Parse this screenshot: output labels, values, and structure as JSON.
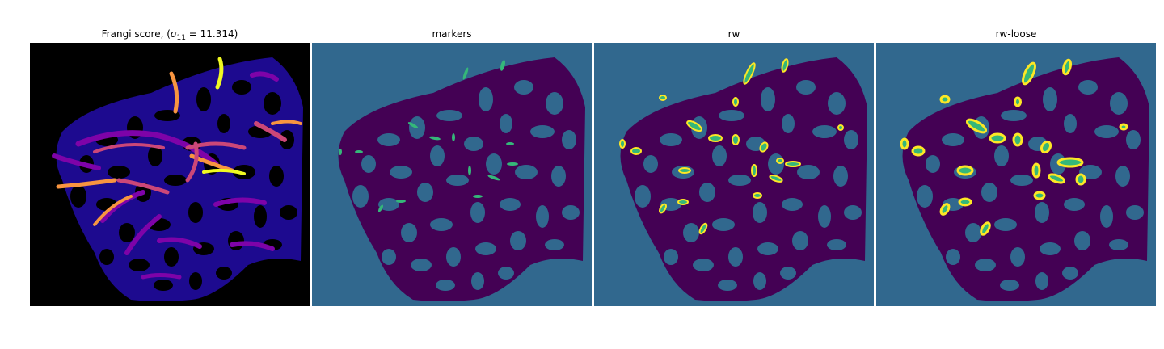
{
  "figure": {
    "panels": [
      {
        "id": "frangi",
        "title_prefix": "Frangi score, (",
        "title_symbol": "σ",
        "title_subscript": "11",
        "title_suffix": " = 11.314)",
        "background": "#000000",
        "colormap": "plasma"
      },
      {
        "id": "markers",
        "title": "markers",
        "background": "#31688e",
        "colormap": "viridis"
      },
      {
        "id": "rw",
        "title": "rw",
        "background": "#31688e",
        "colormap": "viridis"
      },
      {
        "id": "rw-loose",
        "title": "rw-loose",
        "background": "#31688e",
        "colormap": "viridis"
      }
    ],
    "colors": {
      "viridis_dark": "#440154",
      "viridis_mid": "#31688e",
      "viridis_green": "#35b779",
      "viridis_yellow": "#fde725",
      "plasma_dark": "#0d0887",
      "plasma_purple": "#7e03a8",
      "plasma_pink": "#cc4778",
      "plasma_orange": "#f89540",
      "plasma_yellow": "#f0f921"
    }
  }
}
